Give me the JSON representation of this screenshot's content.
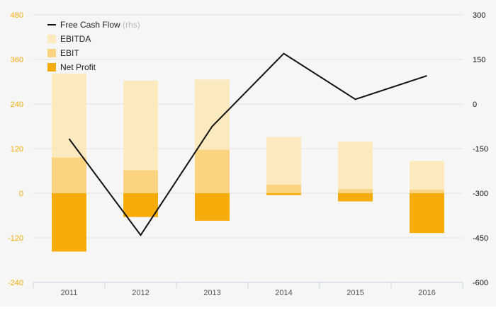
{
  "chart_data": {
    "type": "bar",
    "categories": [
      "2011",
      "2012",
      "2013",
      "2014",
      "2015",
      "2016"
    ],
    "series": [
      {
        "name": "EBITDA",
        "kind": "bar",
        "axis": "left",
        "color": "#fde9be",
        "values": [
          322,
          303,
          306,
          151,
          139,
          87
        ]
      },
      {
        "name": "EBIT",
        "kind": "bar",
        "axis": "left",
        "color": "#fcd380",
        "values": [
          96,
          62,
          117,
          23,
          11,
          9
        ]
      },
      {
        "name": "Net Profit",
        "kind": "bar",
        "axis": "left",
        "color": "#f6ac0a",
        "values": [
          -157,
          -64,
          -74,
          -5,
          -22,
          -107
        ]
      },
      {
        "name": "Free Cash Flow",
        "kind": "line",
        "axis": "right",
        "color": "#111111",
        "values": [
          -117,
          -441,
          -75,
          170,
          16,
          95
        ]
      }
    ],
    "left_axis": {
      "ticks": [
        480,
        360,
        240,
        120,
        0,
        -120,
        -240
      ],
      "ylim": [
        -240,
        480
      ],
      "color": "#f6ac0a"
    },
    "right_axis": {
      "ticks": [
        300,
        150,
        0,
        -150,
        -300,
        -450,
        -600
      ],
      "ylim": [
        -600,
        300
      ],
      "color": "#111111"
    },
    "legend": {
      "items": [
        {
          "label": "Free Cash Flow",
          "suffix": "(rhs)",
          "swatch": "line",
          "color": "#111111"
        },
        {
          "label": "EBITDA",
          "suffix": "",
          "swatch": "box",
          "color": "#fde9be"
        },
        {
          "label": "EBIT",
          "suffix": "",
          "swatch": "box",
          "color": "#fcd380"
        },
        {
          "label": "Net Profit",
          "suffix": "",
          "swatch": "box",
          "color": "#f6ac0a"
        }
      ],
      "position": "top-left"
    },
    "grid": true,
    "colors": {
      "background": "#f6f6f6",
      "grid": "#e2e2e2",
      "axis_line": "#c9d2e3",
      "category_text": "#555555",
      "legend_suffix": "#b9b9b9"
    }
  }
}
